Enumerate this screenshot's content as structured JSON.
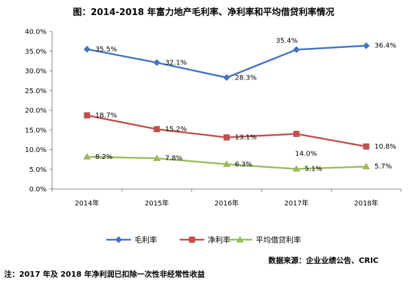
{
  "chart_data": {
    "type": "line",
    "title": "图：2014-2018 年富力地产毛利率、净利率和平均借贷利率情况",
    "categories": [
      "2014年",
      "2015年",
      "2016年",
      "2017年",
      "2018年"
    ],
    "y_ticks": [
      "0.0%",
      "5.0%",
      "10.0%",
      "15.0%",
      "20.0%",
      "25.0%",
      "30.0%",
      "35.0%",
      "40.0%"
    ],
    "ylim": [
      0,
      40
    ],
    "grid": false,
    "legend_position": "bottom",
    "series": [
      {
        "name": "毛利率",
        "values": [
          35.5,
          32.1,
          28.3,
          35.4,
          36.4
        ],
        "labels": [
          "35.5%",
          "32.1%",
          "28.3%",
          "35.4%",
          "36.4%"
        ],
        "color": "#4472C4",
        "marker": "diamond"
      },
      {
        "name": "净利率",
        "values": [
          18.7,
          15.2,
          13.1,
          14.0,
          10.8
        ],
        "labels": [
          "18.7%",
          "15.2%",
          "13.1%",
          "14.0%",
          "10.8%"
        ],
        "color": "#C0504D",
        "marker": "square"
      },
      {
        "name": "平均借贷利率",
        "values": [
          8.2,
          7.8,
          6.3,
          5.1,
          5.7
        ],
        "labels": [
          "8.2%",
          "7.8%",
          "6.3%",
          "5.1%",
          "5.7%"
        ],
        "color": "#9BBB59",
        "marker": "triangle"
      }
    ],
    "source": "数据来源：企业业绩公告、CRIC",
    "note": "注：2017 年及 2018 年净利润已扣除一次性非经常性收益"
  }
}
